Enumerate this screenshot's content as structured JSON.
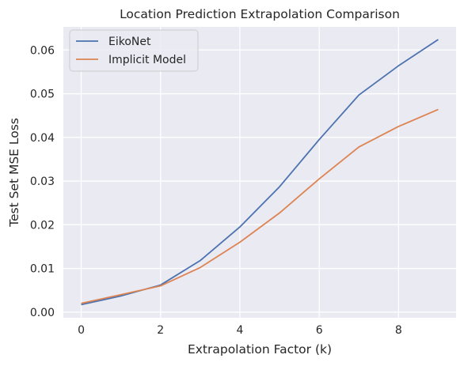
{
  "chart_data": {
    "type": "line",
    "title": "Location Prediction Extrapolation Comparison",
    "xlabel": "Extrapolation Factor (k)",
    "ylabel": "Test Set MSE Loss",
    "x": [
      0,
      1,
      2,
      3,
      4,
      5,
      6,
      7,
      8,
      9
    ],
    "xlim": [
      -0.45,
      9.45
    ],
    "ylim": [
      -0.0013,
      0.0653
    ],
    "xticks": [
      0,
      2,
      4,
      6,
      8
    ],
    "yticks": [
      0.0,
      0.01,
      0.02,
      0.03,
      0.04,
      0.05,
      0.06
    ],
    "xtick_labels": [
      "0",
      "2",
      "4",
      "6",
      "8"
    ],
    "ytick_labels": [
      "0.00",
      "0.01",
      "0.02",
      "0.03",
      "0.04",
      "0.05",
      "0.06"
    ],
    "series": [
      {
        "name": "EikoNet",
        "color": "#4c72b0",
        "values": [
          0.0017,
          0.0037,
          0.0062,
          0.0118,
          0.0195,
          0.0287,
          0.0395,
          0.0497,
          0.0564,
          0.0624
        ]
      },
      {
        "name": "Implicit Model",
        "color": "#dd8452",
        "values": [
          0.002,
          0.004,
          0.006,
          0.0102,
          0.016,
          0.0227,
          0.0305,
          0.0378,
          0.0425,
          0.0464
        ]
      }
    ],
    "legend_position": "top-left",
    "grid": true,
    "background_color": "#eaeaf2",
    "grid_color": "#ffffff"
  }
}
